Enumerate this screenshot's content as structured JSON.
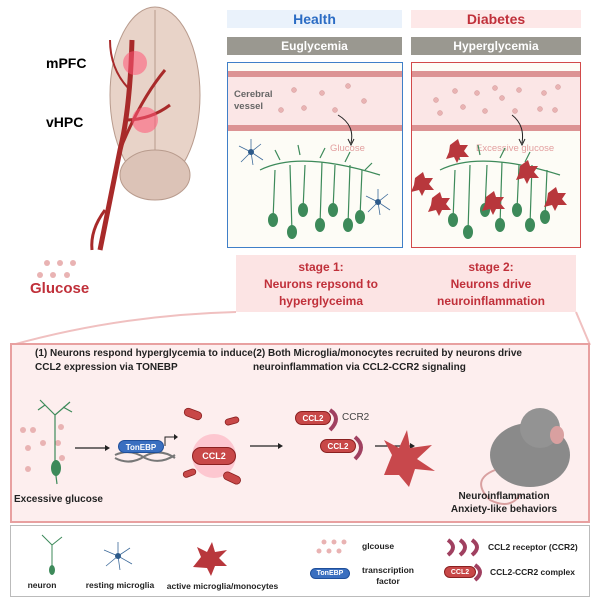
{
  "left": {
    "mpfc_label": "mPFC",
    "vhpc_label": "vHPC",
    "glucose_label": "Glucose"
  },
  "health": {
    "title": "Health",
    "condition": "Euglycemia",
    "vessel_label": "Cerebral vessel",
    "glucose_label": "Glucose"
  },
  "diabetes": {
    "title": "Diabetes",
    "condition": "Hyperglycemia",
    "glucose_label": "Excessive glucose"
  },
  "stages": [
    {
      "title": "stage 1:",
      "line1": "Neurons repsond to",
      "line2": "hyperglyceima"
    },
    {
      "title": "stage 2:",
      "line1": "Neurons drive",
      "line2": "neuroinflammation"
    }
  ],
  "mechanism": {
    "step1_line1": "(1) Neurons respond hyperglycemia to induce",
    "step1_line2": "CCL2 expression via TONEBP",
    "step2_line1": "(2) Both Microglia/monocytes recruited by neurons drive",
    "step2_line2": "neuroinflammation  via CCL2-CCR2 signaling",
    "excessive_glucose": "Excessive glucose",
    "tonebp": "TonEBP",
    "ccl2": "CCL2",
    "ccr2": "CCR2",
    "outcome_line1": "Neuroinflammation",
    "outcome_line2": "Anxiety-like behaviors"
  },
  "legend": {
    "neuron": "neuron",
    "resting_microglia": "resting microglia",
    "active_microglia": "active microglia/monocytes",
    "glucose": "glcouse",
    "tf_pill": "TonEBP",
    "tf_line1": "transcription",
    "tf_line2": "factor",
    "receptor": "CCL2 receptor (CCR2)",
    "complex_pill": "CCL2",
    "complex": "CCL2-CCR2 complex"
  },
  "colors": {
    "health": "#2b6cc4",
    "diabetes": "#c0303a",
    "neuron": "#3d8a5a",
    "microglia_active": "#b8373c",
    "tonebp": "#3a6fc0"
  }
}
